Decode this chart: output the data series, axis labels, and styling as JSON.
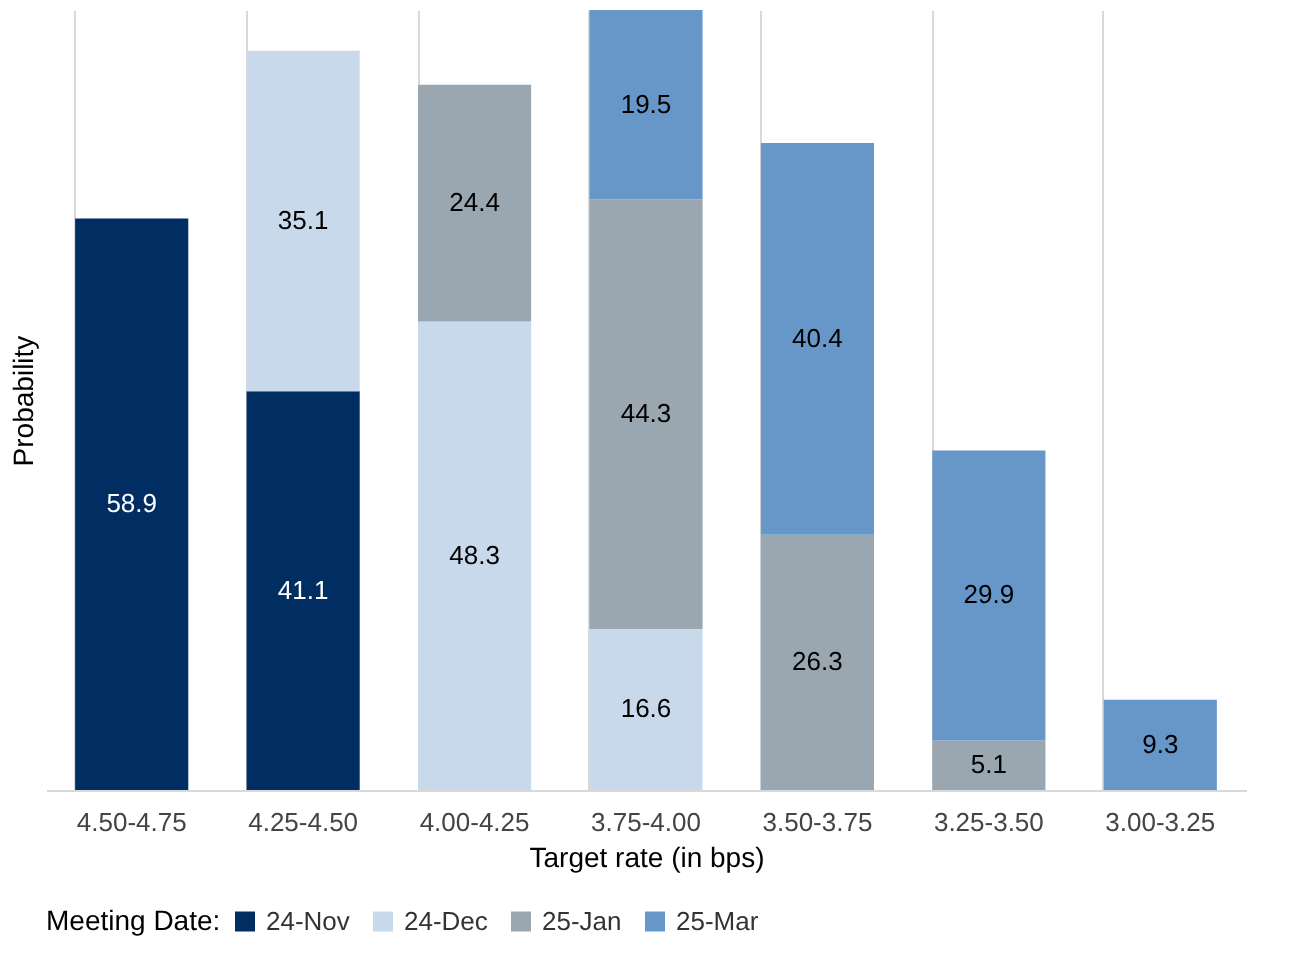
{
  "chart_data": {
    "type": "bar",
    "stacked": true,
    "data_labels": true,
    "grid": "x",
    "legend": "bottom",
    "xlabel": "Target rate (in bps)",
    "ylabel": "Probability",
    "legend_title": "Meeting Date:",
    "tick_labels": "x",
    "categories": [
      "4.50-4.75",
      "4.25-4.50",
      "4.00-4.25",
      "3.75-4.00",
      "3.50-3.75",
      "3.25-3.50",
      "3.00-3.25"
    ],
    "series": [
      {
        "name": "24-Nov",
        "color": "#002d62",
        "values": [
          58.9,
          41.1,
          null,
          null,
          null,
          null,
          null
        ]
      },
      {
        "name": "24-Dec",
        "color": "#c9d9ec",
        "values": [
          null,
          35.1,
          48.3,
          16.6,
          null,
          null,
          null
        ]
      },
      {
        "name": "25-Jan",
        "color": "#9aa7b0",
        "values": [
          null,
          null,
          24.4,
          44.3,
          26.3,
          5.1,
          null
        ]
      },
      {
        "name": "25-Mar",
        "color": "#6796c8",
        "values": [
          null,
          null,
          null,
          19.5,
          40.4,
          29.9,
          9.3
        ]
      }
    ]
  }
}
